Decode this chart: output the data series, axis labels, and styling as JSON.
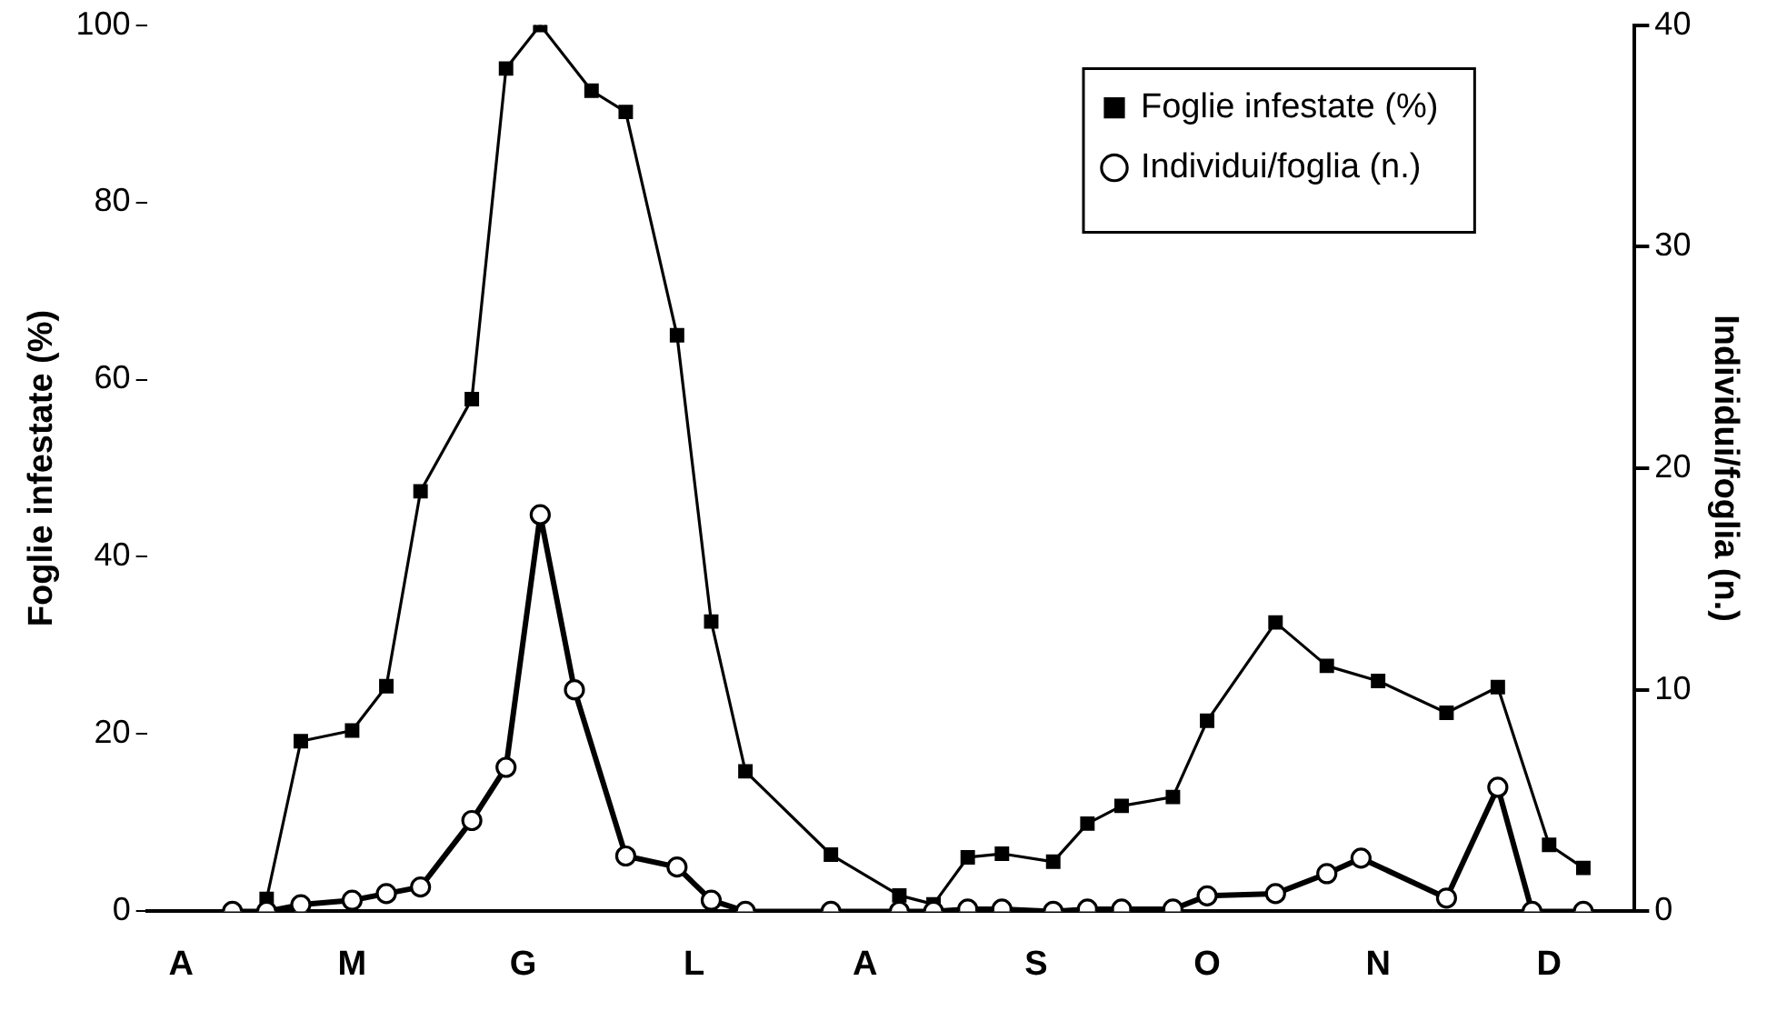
{
  "chart_data": {
    "type": "line",
    "ylabel": "Foglie infestate (%)",
    "y2label": "Individui/foglia (n.)",
    "categories": [
      null,
      null,
      "A",
      null,
      null,
      null,
      null,
      null,
      null,
      null,
      null,
      null,
      "M",
      null,
      null,
      null,
      null,
      null,
      null,
      null,
      null,
      null,
      "G",
      null,
      null,
      null,
      null,
      null,
      null,
      null,
      null,
      null,
      "L",
      null,
      null,
      null,
      null,
      null,
      null,
      null,
      null,
      null,
      "A",
      null,
      null,
      null,
      null,
      null,
      null,
      null,
      null,
      null,
      "S",
      null,
      null,
      null,
      null,
      null,
      null,
      null,
      null,
      null,
      "O",
      null,
      null,
      null,
      null,
      null,
      null,
      null,
      null,
      null,
      "N",
      null,
      null,
      null,
      null,
      null,
      null,
      null,
      null,
      null,
      "D",
      null,
      null,
      null,
      null,
      null
    ],
    "ylim": [
      0,
      100
    ],
    "yticks": [
      0,
      20,
      40,
      60,
      80,
      100
    ],
    "y2lim": [
      0,
      40
    ],
    "y2ticks": [
      0,
      10,
      20,
      30,
      40
    ],
    "grid": false,
    "legend": "top right",
    "series": [
      {
        "name": "Foglie infestate (%)",
        "color": "#000000",
        "marker": "square",
        "values": [
          null,
          null,
          null,
          null,
          null,
          null,
          null,
          1.4,
          null,
          19.2,
          null,
          null,
          20.4,
          null,
          25.4,
          null,
          47.4,
          null,
          null,
          57.8,
          null,
          95.1,
          null,
          100,
          null,
          null,
          92.6,
          null,
          90.2,
          null,
          null,
          65,
          null,
          32.7,
          null,
          15.8,
          null,
          null,
          null,
          null,
          6.4,
          null,
          null,
          null,
          1.8,
          null,
          0.8,
          null,
          6.1,
          null,
          6.5,
          null,
          null,
          5.6,
          null,
          9.9,
          null,
          11.9,
          null,
          null,
          12.9,
          null,
          21.5,
          null,
          null,
          null,
          32.6,
          null,
          null,
          27.7,
          null,
          null,
          26,
          null,
          null,
          null,
          22.4,
          null,
          null,
          25.3,
          null,
          null,
          7.5,
          null,
          4.9,
          null,
          null,
          null
        ]
      },
      {
        "name": "Individui/foglia (n.)",
        "color": "#000000",
        "marker": "circle",
        "axis": "y2",
        "values": [
          null,
          null,
          null,
          null,
          null,
          0,
          null,
          0,
          null,
          0.3,
          null,
          null,
          0.5,
          null,
          0.8,
          null,
          1.1,
          null,
          null,
          4.1,
          null,
          6.5,
          null,
          17.9,
          null,
          10,
          null,
          null,
          2.5,
          null,
          null,
          2,
          null,
          0.5,
          null,
          0,
          null,
          null,
          null,
          null,
          0,
          null,
          null,
          null,
          0,
          null,
          0,
          null,
          0.1,
          null,
          0.1,
          null,
          null,
          0,
          null,
          0.1,
          null,
          0.1,
          null,
          null,
          0.1,
          null,
          0.7,
          null,
          null,
          null,
          0.8,
          null,
          null,
          1.7,
          null,
          2.4,
          null,
          null,
          null,
          null,
          0.6,
          null,
          null,
          5.6,
          null,
          0,
          null,
          null,
          0,
          null,
          null,
          null
        ]
      }
    ]
  }
}
